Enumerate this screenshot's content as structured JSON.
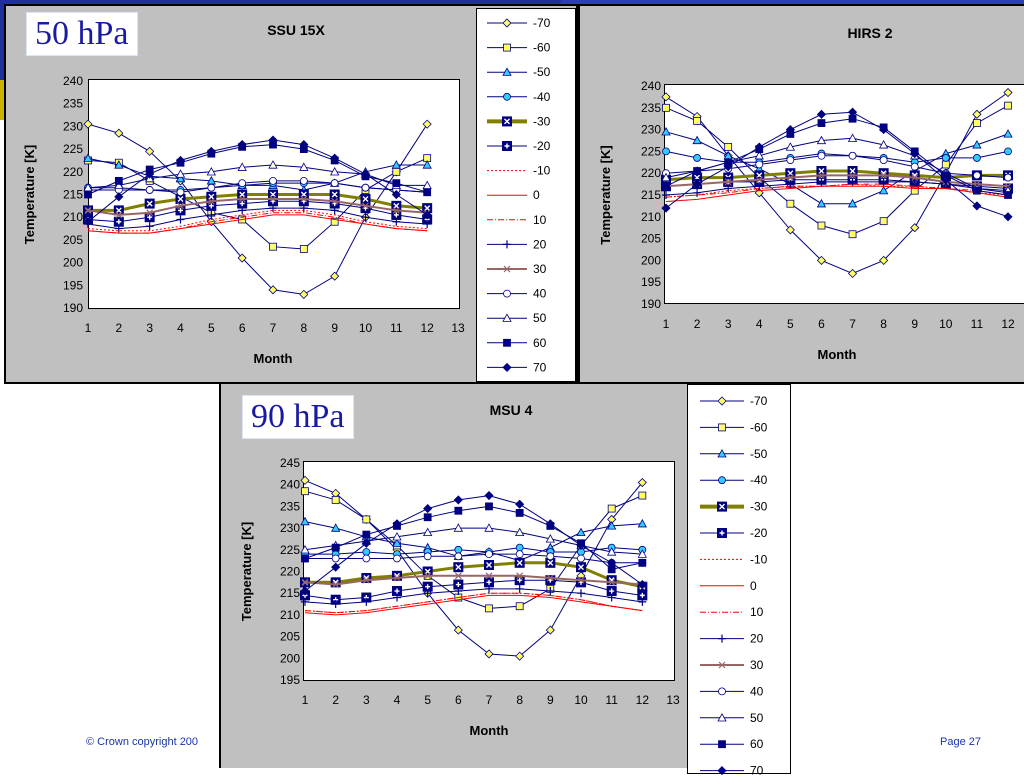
{
  "labels": {
    "hpa50": "50 hPa",
    "hpa90": "90 hPa"
  },
  "footer": {
    "copyright": "© Crown copyright 200",
    "page": "Page 27"
  },
  "legend_entries": [
    {
      "name": "-70",
      "color": "#000080",
      "marker": "diamond",
      "fill": "#ffff66",
      "dash": "",
      "width": 1
    },
    {
      "name": "-60",
      "color": "#000080",
      "marker": "square",
      "fill": "#ffff66",
      "dash": "",
      "width": 1
    },
    {
      "name": "-50",
      "color": "#000080",
      "marker": "triangle",
      "fill": "#33ccff",
      "dash": "",
      "width": 1
    },
    {
      "name": "-40",
      "color": "#000080",
      "marker": "circle",
      "fill": "#33ccff",
      "dash": "",
      "width": 1
    },
    {
      "name": "-30",
      "color": "#808000",
      "marker": "boxx",
      "fill": "#000080",
      "dash": "",
      "width": 3
    },
    {
      "name": "-20",
      "color": "#000080",
      "marker": "boxplus",
      "fill": "#000080",
      "dash": "",
      "width": 1
    },
    {
      "name": "-10",
      "color": "#ff0000",
      "marker": "none",
      "fill": "none",
      "dash": "2,2",
      "width": 1
    },
    {
      "name": "0",
      "color": "#ff0000",
      "marker": "none",
      "fill": "none",
      "dash": "",
      "width": 1
    },
    {
      "name": "10",
      "color": "#ff0000",
      "marker": "none",
      "fill": "none",
      "dash": "6,2,1,2",
      "width": 1
    },
    {
      "name": "20",
      "color": "#000080",
      "marker": "plus",
      "fill": "none",
      "dash": "",
      "width": 1
    },
    {
      "name": "30",
      "color": "#996666",
      "marker": "x",
      "fill": "none",
      "dash": "",
      "width": 2
    },
    {
      "name": "40",
      "color": "#000080",
      "marker": "circle",
      "fill": "#ffffff",
      "dash": "",
      "width": 1
    },
    {
      "name": "50",
      "color": "#000080",
      "marker": "triangle",
      "fill": "#ffffff",
      "dash": "",
      "width": 1
    },
    {
      "name": "60",
      "color": "#000080",
      "marker": "square",
      "fill": "#000080",
      "dash": "",
      "width": 1
    },
    {
      "name": "70",
      "color": "#000080",
      "marker": "diamond",
      "fill": "#000080",
      "dash": "",
      "width": 1
    }
  ],
  "chart_data": [
    {
      "type": "line",
      "title": "SSU 15X",
      "xlabel": "Month",
      "ylabel": "Temperature [K]",
      "xlim": [
        1,
        13
      ],
      "ylim": [
        190,
        240
      ],
      "yticks": [
        190,
        195,
        200,
        205,
        210,
        215,
        220,
        225,
        230,
        235,
        240
      ],
      "xticks": [
        1,
        2,
        3,
        4,
        5,
        6,
        7,
        8,
        9,
        10,
        11,
        12,
        13
      ],
      "x": [
        1,
        2,
        3,
        4,
        5,
        6,
        7,
        8,
        9,
        10,
        11,
        12
      ],
      "series": [
        {
          "name": "-70",
          "values": [
            230.5,
            228.5,
            224.5,
            218,
            209,
            201,
            194,
            193,
            197,
            210,
            220,
            230.5
          ]
        },
        {
          "name": "-60",
          "values": [
            222.5,
            222,
            218,
            214.5,
            211,
            209.5,
            203.5,
            203,
            209,
            216,
            220,
            223
          ]
        },
        {
          "name": "-50",
          "values": [
            223,
            221.5,
            219,
            218.5,
            218,
            217,
            217,
            216,
            217.5,
            220,
            221.5,
            221.5
          ]
        },
        {
          "name": "-40",
          "values": [
            216.5,
            216.5,
            216,
            216,
            216.5,
            217,
            217.5,
            217.5,
            217.5,
            216.5,
            216,
            215.5
          ]
        },
        {
          "name": "-30",
          "values": [
            211.5,
            211.5,
            213,
            214,
            214.5,
            215,
            215,
            215,
            215,
            214,
            212.5,
            212
          ]
        },
        {
          "name": "-20",
          "values": [
            209.5,
            209,
            210,
            211.5,
            212.5,
            213,
            213.5,
            213.5,
            213,
            212,
            210.5,
            209.5
          ]
        },
        {
          "name": "-10",
          "values": [
            207.5,
            207,
            207,
            208,
            209.5,
            210.5,
            211.5,
            211.5,
            210.5,
            209,
            208,
            207.5
          ]
        },
        {
          "name": "0",
          "values": [
            207,
            206.5,
            206.5,
            207.5,
            208.5,
            209.5,
            210.5,
            210.5,
            209.5,
            208.5,
            207.5,
            207
          ]
        },
        {
          "name": "10",
          "values": [
            207,
            206.5,
            206.5,
            207.5,
            209,
            210,
            211,
            211,
            210,
            208.5,
            207.5,
            207
          ]
        },
        {
          "name": "20",
          "values": [
            208.5,
            207.5,
            208,
            209.5,
            210.5,
            211.5,
            212,
            212,
            211.5,
            210,
            209,
            208.5
          ]
        },
        {
          "name": "30",
          "values": [
            211.5,
            210.5,
            211,
            212.5,
            213.5,
            214,
            214,
            214,
            213.5,
            212.5,
            211.5,
            211
          ]
        },
        {
          "name": "40",
          "values": [
            216,
            216,
            216,
            215.5,
            216.5,
            217.5,
            218,
            218,
            217.5,
            216.5,
            216,
            215.5
          ]
        },
        {
          "name": "50",
          "values": [
            216.5,
            217,
            218.5,
            219.5,
            220,
            221,
            221.5,
            221,
            220,
            219.5,
            217,
            217
          ]
        },
        {
          "name": "60",
          "values": [
            215,
            218,
            220.5,
            222,
            224,
            225.5,
            226,
            225,
            222.5,
            219,
            217.5,
            215.5
          ]
        },
        {
          "name": "70",
          "values": [
            209,
            214.5,
            219.5,
            222.5,
            224.5,
            226,
            227,
            226,
            223,
            219.5,
            215,
            210.5
          ]
        }
      ]
    },
    {
      "type": "line",
      "title": "HIRS 2",
      "xlabel": "Month",
      "ylabel": "Temperature [K]",
      "xlim": [
        1,
        12
      ],
      "ylim": [
        190,
        240
      ],
      "yticks": [
        190,
        195,
        200,
        205,
        210,
        215,
        220,
        225,
        230,
        235,
        240
      ],
      "xticks": [
        1,
        2,
        3,
        4,
        5,
        6,
        7,
        8,
        9,
        10,
        11,
        12
      ],
      "x": [
        1,
        2,
        3,
        4,
        5,
        6,
        7,
        8,
        9,
        10,
        11,
        12
      ],
      "series": [
        {
          "name": "-70",
          "values": [
            237.5,
            233,
            224,
            215.5,
            207,
            200,
            197,
            200,
            207.5,
            220,
            233.5,
            238.5
          ]
        },
        {
          "name": "-60",
          "values": [
            235,
            232,
            226,
            219,
            213,
            208,
            206,
            209,
            216,
            222,
            231.5,
            235.5
          ]
        },
        {
          "name": "-50",
          "values": [
            229.5,
            227.5,
            224,
            221,
            217.5,
            213,
            213,
            216,
            220.5,
            224.5,
            226.5,
            229
          ]
        },
        {
          "name": "-40",
          "values": [
            225,
            223.5,
            222.5,
            222.5,
            223.5,
            224.5,
            224,
            223.5,
            222.5,
            223.5,
            223.5,
            225
          ]
        },
        {
          "name": "-30",
          "values": [
            218.5,
            219,
            219,
            219.5,
            220,
            220.5,
            220.5,
            220,
            219.5,
            219,
            219.5,
            219.5
          ]
        },
        {
          "name": "-20",
          "values": [
            217,
            217.5,
            218,
            218,
            218.5,
            218.5,
            218.5,
            218.5,
            218,
            217.5,
            217,
            216.5
          ]
        },
        {
          "name": "-10",
          "values": [
            214.5,
            215,
            216,
            216.5,
            217,
            217,
            217.5,
            217,
            217,
            216.5,
            215.5,
            215
          ]
        },
        {
          "name": "0",
          "values": [
            213.5,
            214,
            215,
            216,
            216.5,
            217,
            217,
            217,
            216.5,
            216.5,
            215.5,
            214.5
          ]
        },
        {
          "name": "10",
          "values": [
            214.5,
            215,
            215.5,
            216.5,
            217,
            217,
            217.5,
            217.5,
            217,
            216.5,
            216,
            215
          ]
        },
        {
          "name": "20",
          "values": [
            215,
            215.5,
            216.5,
            217,
            217.5,
            218,
            218,
            218,
            218,
            217.5,
            216.5,
            215.5
          ]
        },
        {
          "name": "30",
          "values": [
            217,
            217.5,
            218,
            218.5,
            219,
            219.5,
            219.5,
            219.5,
            219,
            218,
            217.5,
            217
          ]
        },
        {
          "name": "40",
          "values": [
            220,
            220.5,
            221,
            222,
            223,
            224,
            224,
            223,
            221.5,
            220,
            219.5,
            219
          ]
        },
        {
          "name": "50",
          "values": [
            219,
            220.5,
            222.5,
            224,
            226,
            227.5,
            228,
            226.5,
            224,
            220,
            216.5,
            216
          ]
        },
        {
          "name": "60",
          "values": [
            217,
            220.5,
            222.5,
            225.5,
            229,
            231.5,
            232.5,
            230.5,
            225,
            219.5,
            216,
            215
          ]
        },
        {
          "name": "70",
          "values": [
            212,
            217.5,
            221.5,
            226,
            230,
            233.5,
            234,
            230,
            224.5,
            218.5,
            212.5,
            210
          ]
        }
      ]
    },
    {
      "type": "line",
      "title": "MSU 4",
      "xlabel": "Month",
      "ylabel": "Temperature [K]",
      "xlim": [
        1,
        13
      ],
      "ylim": [
        195,
        245
      ],
      "yticks": [
        195,
        200,
        205,
        210,
        215,
        220,
        225,
        230,
        235,
        240,
        245
      ],
      "xticks": [
        1,
        2,
        3,
        4,
        5,
        6,
        7,
        8,
        9,
        10,
        11,
        12,
        13
      ],
      "x": [
        1,
        2,
        3,
        4,
        5,
        6,
        7,
        8,
        9,
        10,
        11,
        12
      ],
      "series": [
        {
          "name": "-70",
          "values": [
            241,
            238,
            232,
            225,
            215,
            206.5,
            201,
            200.5,
            206.5,
            219,
            232,
            240.5
          ]
        },
        {
          "name": "-60",
          "values": [
            238.5,
            236.5,
            232,
            226,
            219,
            214,
            211.5,
            212,
            216,
            226,
            234.5,
            237.5
          ]
        },
        {
          "name": "-50",
          "values": [
            231.5,
            230,
            228,
            226.5,
            225.5,
            223.5,
            224.5,
            222.5,
            225.5,
            229,
            230.5,
            231
          ]
        },
        {
          "name": "-40",
          "values": [
            224,
            224,
            224.5,
            224,
            224.5,
            225,
            224.5,
            225.5,
            224.5,
            224.5,
            225.5,
            225
          ]
        },
        {
          "name": "-30",
          "values": [
            217.5,
            217.5,
            218.5,
            219,
            220,
            221,
            221.5,
            222,
            222,
            221,
            218,
            216.5
          ]
        },
        {
          "name": "-20",
          "values": [
            214.5,
            213.5,
            214,
            215.5,
            216.5,
            217,
            217.5,
            218,
            218,
            217.5,
            215.5,
            214.5
          ]
        },
        {
          "name": "-10",
          "values": [
            211,
            210.5,
            211,
            212,
            213,
            214,
            215,
            215,
            214.5,
            213.5,
            212,
            211
          ]
        },
        {
          "name": "0",
          "values": [
            210.5,
            210,
            210.5,
            211.5,
            212.5,
            213.5,
            214.5,
            214.5,
            214,
            213,
            212,
            211
          ]
        },
        {
          "name": "10",
          "values": [
            211,
            210.5,
            211,
            212,
            213,
            214,
            215,
            215,
            214.5,
            213.5,
            212,
            211
          ]
        },
        {
          "name": "20",
          "values": [
            213,
            212.5,
            213,
            214,
            215,
            215.5,
            216,
            216,
            215.5,
            215,
            214,
            213
          ]
        },
        {
          "name": "30",
          "values": [
            217.5,
            217,
            218,
            218.5,
            219,
            219,
            219,
            219,
            218.5,
            218,
            217.5,
            217
          ]
        },
        {
          "name": "40",
          "values": [
            223,
            223,
            223,
            223,
            223.5,
            223.5,
            224,
            224,
            223.5,
            223,
            222,
            222
          ]
        },
        {
          "name": "50",
          "values": [
            225,
            226,
            227,
            228,
            229,
            230,
            230,
            229,
            227.5,
            226,
            224.5,
            224
          ]
        },
        {
          "name": "60",
          "values": [
            223,
            225.5,
            228.5,
            230.5,
            232.5,
            234,
            235,
            233.5,
            230.5,
            226.5,
            220.5,
            222
          ]
        },
        {
          "name": "70",
          "values": [
            215.5,
            221,
            226.5,
            231,
            234.5,
            236.5,
            237.5,
            235.5,
            231,
            226,
            222,
            217
          ]
        }
      ]
    }
  ]
}
